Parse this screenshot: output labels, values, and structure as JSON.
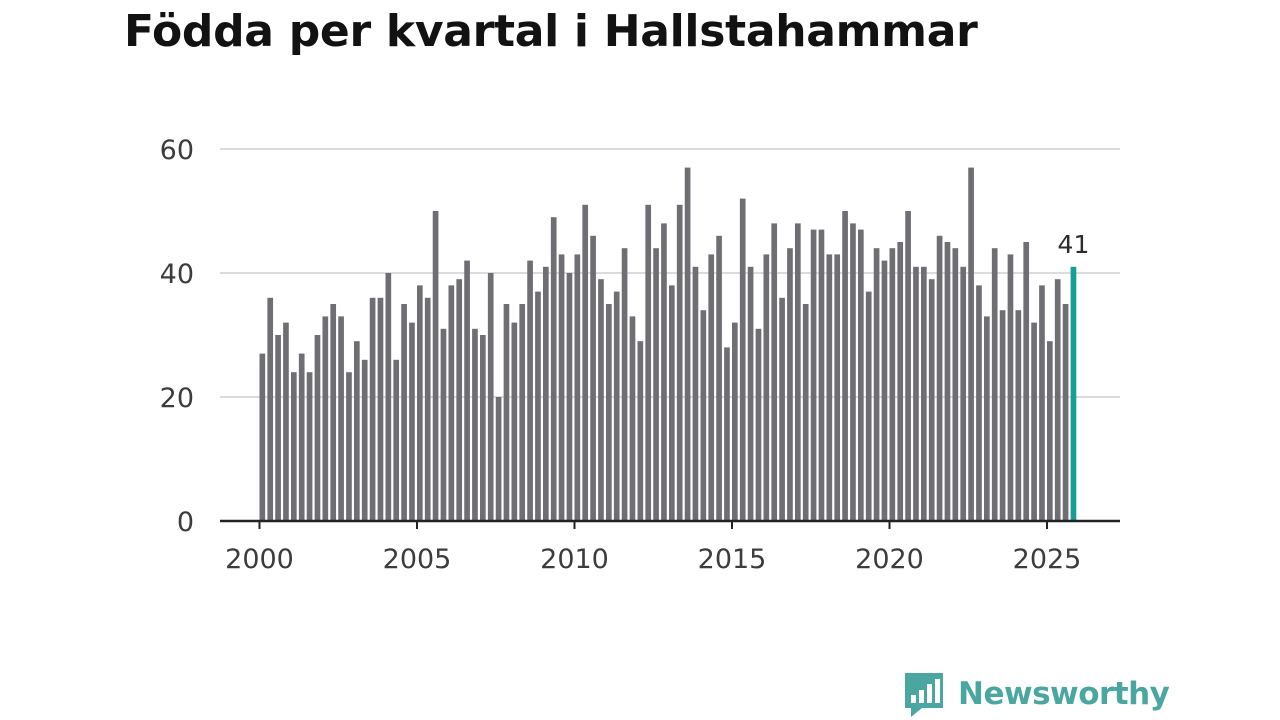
{
  "title": "Födda per kvartal i Hallstahammar",
  "brand": {
    "name": "Newsworthy",
    "color": "#4aa6a0"
  },
  "colors": {
    "bar": "#6e6e73",
    "highlight": "#14a096",
    "grid": "#dcdcdc",
    "axis": "#222222"
  },
  "chart_data": {
    "type": "bar",
    "title": "Födda per kvartal i Hallstahammar",
    "xlabel": "",
    "ylabel": "",
    "ylim": [
      0,
      60
    ],
    "yticks": [
      0,
      20,
      40,
      60
    ],
    "xticks": [
      "2000",
      "2005",
      "2010",
      "2015",
      "2020",
      "2025"
    ],
    "x_start_year": 2000,
    "periods_per_year": 4,
    "grid": true,
    "highlight_last": true,
    "last_value_label": "41",
    "values": [
      27,
      36,
      30,
      32,
      24,
      27,
      24,
      30,
      33,
      35,
      33,
      24,
      29,
      26,
      36,
      36,
      40,
      26,
      35,
      32,
      38,
      36,
      50,
      31,
      38,
      39,
      42,
      31,
      30,
      40,
      20,
      35,
      32,
      35,
      42,
      37,
      41,
      49,
      43,
      40,
      43,
      51,
      46,
      39,
      35,
      37,
      44,
      33,
      29,
      51,
      44,
      48,
      38,
      51,
      57,
      41,
      34,
      43,
      46,
      28,
      32,
      52,
      41,
      31,
      43,
      48,
      36,
      44,
      48,
      35,
      47,
      47,
      43,
      43,
      50,
      48,
      47,
      37,
      44,
      42,
      44,
      45,
      50,
      41,
      41,
      39,
      46,
      45,
      44,
      41,
      57,
      38,
      33,
      44,
      34,
      43,
      34,
      45,
      32,
      38,
      29,
      39,
      35,
      41
    ]
  }
}
